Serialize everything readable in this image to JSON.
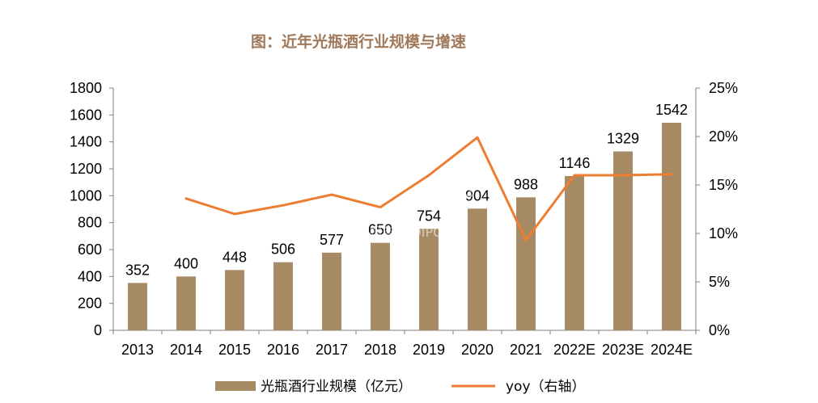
{
  "chart_data": {
    "type": "bar",
    "title": "图：近年光瓶酒行业规模与增速",
    "categories": [
      "2013",
      "2014",
      "2015",
      "2016",
      "2017",
      "2018",
      "2019",
      "2020",
      "2021",
      "2022E",
      "2023E",
      "2024E"
    ],
    "series": [
      {
        "name": "光瓶酒行业规模（亿元）",
        "type": "bar",
        "axis": "left",
        "values": [
          352,
          400,
          448,
          506,
          577,
          650,
          754,
          904,
          988,
          1146,
          1329,
          1542
        ],
        "color": "#a68a64"
      },
      {
        "name": "yoy（右轴）",
        "type": "line",
        "axis": "right",
        "values": [
          null,
          0.136,
          0.12,
          0.129,
          0.14,
          0.127,
          0.16,
          0.199,
          0.093,
          0.16,
          0.16,
          0.161
        ],
        "color": "#ed7d31"
      }
    ],
    "ylim_left": [
      0,
      1800
    ],
    "yticks_left": [
      "0",
      "200",
      "400",
      "600",
      "800",
      "1000",
      "1200",
      "1400",
      "1600",
      "1800"
    ],
    "ylim_right": [
      0,
      0.25
    ],
    "yticks_right": [
      "0%",
      "5%",
      "10%",
      "15%",
      "20%",
      "25%"
    ],
    "legend_position": "bottom",
    "grid": false
  },
  "watermark": {
    "main": "新浪财经",
    "sub": "行业报告 IPOIPO.CN"
  },
  "colors": {
    "title": "#a0785a",
    "axis": "#7f7f7f"
  }
}
